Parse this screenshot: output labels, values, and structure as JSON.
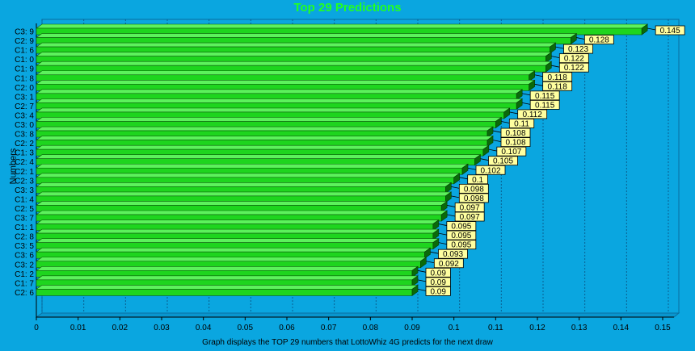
{
  "chart_data": {
    "type": "bar",
    "orientation": "horizontal",
    "title": "Top 29 Predictions",
    "ylabel": "Numbers",
    "xlabel": "Graph displays the TOP 29 numbers that LottoWhiz 4G predicts for the next draw",
    "categories": [
      "C3: 9",
      "C2: 9",
      "C1: 6",
      "C1: 0",
      "C1: 9",
      "C1: 8",
      "C2: 0",
      "C3: 1",
      "C2: 7",
      "C3: 4",
      "C3: 0",
      "C3: 8",
      "C2: 2",
      "C1: 3",
      "C2: 4",
      "C2: 1",
      "C2: 3",
      "C3: 3",
      "C1: 4",
      "C2: 5",
      "C3: 7",
      "C1: 1",
      "C2: 8",
      "C3: 5",
      "C3: 6",
      "C3: 2",
      "C1: 2",
      "C1: 7",
      "C2: 6"
    ],
    "values": [
      0.145,
      0.128,
      0.123,
      0.122,
      0.122,
      0.118,
      0.118,
      0.115,
      0.115,
      0.112,
      0.11,
      0.108,
      0.108,
      0.107,
      0.105,
      0.102,
      0.1,
      0.098,
      0.098,
      0.097,
      0.097,
      0.095,
      0.095,
      0.095,
      0.093,
      0.092,
      0.09,
      0.09,
      0.09
    ],
    "xlim": [
      0,
      0.155
    ],
    "xticks": [
      "0",
      "0.01",
      "0.02",
      "0.03",
      "0.04",
      "0.05",
      "0.06",
      "0.07",
      "0.08",
      "0.09",
      "0.1",
      "0.11",
      "0.12",
      "0.13",
      "0.14",
      "0.15"
    ],
    "grid": true,
    "colors": {
      "bar": "#1ed51e",
      "bar_top": "#5cf25c",
      "bar_side": "#0a6a0a",
      "label_bg": "#ffffa0",
      "background": "#0aa6e0",
      "title": "#22ff22"
    }
  }
}
